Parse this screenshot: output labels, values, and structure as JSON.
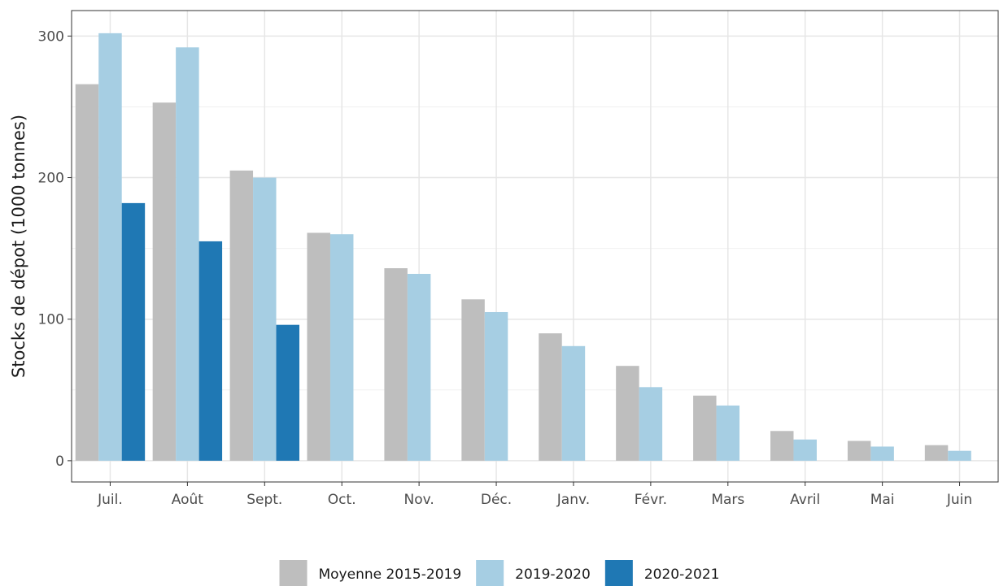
{
  "chart_data": {
    "type": "bar",
    "ylabel": "Stocks de dépot (1000 tonnes)",
    "xlabel": "",
    "ylim": [
      -15,
      318
    ],
    "yticks": [
      0,
      100,
      200,
      300
    ],
    "grid": true,
    "legend_position": "bottom",
    "categories": [
      "Juil.",
      "Août",
      "Sept.",
      "Oct.",
      "Nov.",
      "Déc.",
      "Janv.",
      "Févr.",
      "Mars",
      "Avril",
      "Mai",
      "Juin"
    ],
    "series": [
      {
        "name": "Moyenne 2015-2019",
        "color": "#bebebe",
        "values": [
          266,
          253,
          205,
          161,
          136,
          114,
          90,
          67,
          46,
          21,
          14,
          11
        ]
      },
      {
        "name": "2019-2020",
        "color": "#a6cee3",
        "values": [
          302,
          292,
          200,
          160,
          132,
          105,
          81,
          52,
          39,
          15,
          10,
          7
        ]
      },
      {
        "name": "2020-2021",
        "color": "#1f78b4",
        "values": [
          182,
          155,
          96,
          null,
          null,
          null,
          null,
          null,
          null,
          null,
          null,
          null
        ]
      }
    ]
  }
}
